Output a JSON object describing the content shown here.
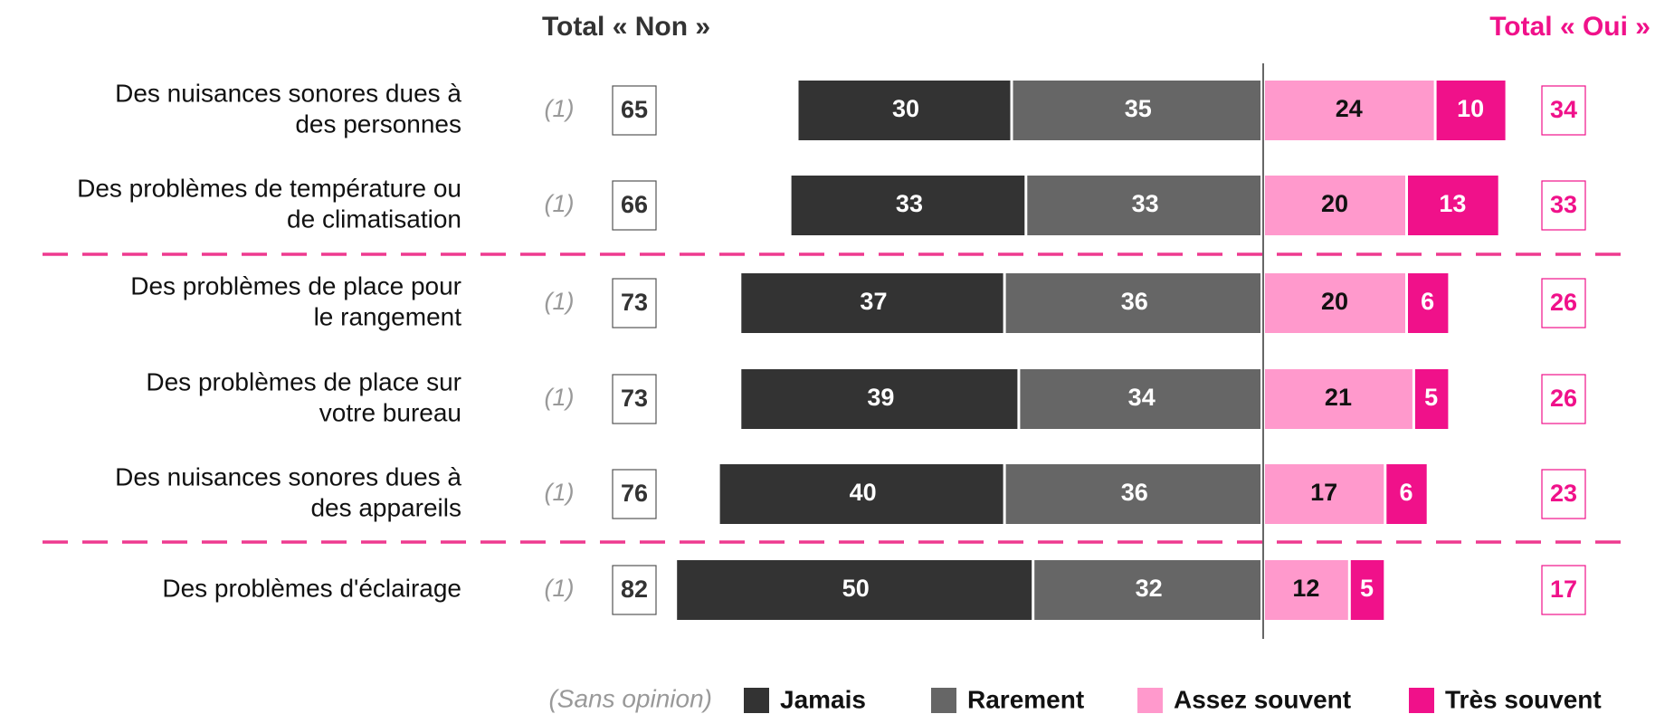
{
  "chart_data": {
    "type": "diverging_bar",
    "left_total_title": "Total « Non »",
    "right_total_title": "Total « Oui »",
    "categories": [
      [
        "Des nuisances sonores dues à",
        "des personnes"
      ],
      [
        "Des problèmes de température ou",
        "de climatisation"
      ],
      [
        "Des problèmes de place pour",
        "le rangement"
      ],
      [
        "Des problèmes de place sur",
        "votre bureau"
      ],
      [
        "Des nuisances sonores dues à",
        "des appareils"
      ],
      [
        "Des problèmes d'éclairage"
      ]
    ],
    "row_notes": [
      "(1)",
      "(1)",
      "(1)",
      "(1)",
      "(1)",
      "(1)"
    ],
    "note_legend": "(Sans opinion)",
    "series": [
      {
        "name": "Jamais",
        "color": "#333333",
        "label_color": "#ffffff",
        "side": "left",
        "values": [
          30,
          33,
          37,
          39,
          40,
          50
        ]
      },
      {
        "name": "Rarement",
        "color": "#666666",
        "label_color": "#ffffff",
        "side": "left",
        "values": [
          35,
          33,
          36,
          34,
          36,
          32
        ]
      },
      {
        "name": "Assez souvent",
        "color": "#ff99cc",
        "label_color": "#111111",
        "side": "right",
        "values": [
          24,
          20,
          20,
          21,
          17,
          12
        ]
      },
      {
        "name": "Très souvent",
        "color": "#f0118a",
        "label_color": "#ffffff",
        "side": "right",
        "values": [
          10,
          13,
          6,
          5,
          6,
          5
        ]
      }
    ],
    "left_totals": [
      65,
      66,
      73,
      73,
      76,
      82
    ],
    "right_totals": [
      34,
      33,
      26,
      26,
      23,
      17
    ],
    "group_breaks": [
      2,
      5
    ]
  }
}
